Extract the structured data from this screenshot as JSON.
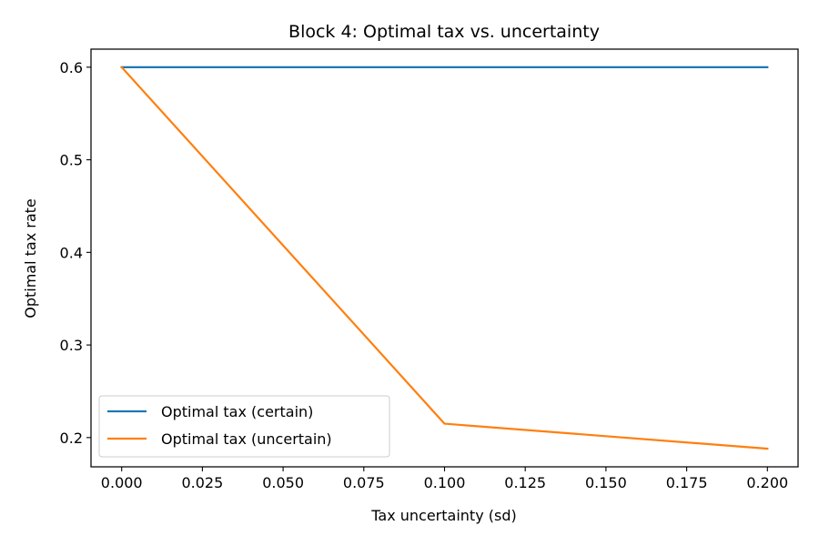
{
  "chart_data": {
    "type": "line",
    "title": "Block 4: Optimal tax vs. uncertainty",
    "xlabel": "Tax uncertainty (sd)",
    "ylabel": "Optimal tax rate",
    "xlim": [
      -0.0095,
      0.2095
    ],
    "ylim": [
      0.1684,
      0.6195
    ],
    "x_ticks": [
      0.0,
      0.025,
      0.05,
      0.075,
      0.1,
      0.125,
      0.15,
      0.175,
      0.2
    ],
    "x_tick_labels": [
      "0.000",
      "0.025",
      "0.050",
      "0.075",
      "0.100",
      "0.125",
      "0.150",
      "0.175",
      "0.200"
    ],
    "y_ticks": [
      0.2,
      0.3,
      0.4,
      0.5,
      0.6
    ],
    "y_tick_labels": [
      "0.2",
      "0.3",
      "0.4",
      "0.5",
      "0.6"
    ],
    "grid": false,
    "legend_position": "lower-left",
    "series": [
      {
        "name": "Optimal tax (certain)",
        "color": "#1f77b4",
        "x": [
          0.0,
          0.1,
          0.2
        ],
        "y": [
          0.6,
          0.6,
          0.6
        ]
      },
      {
        "name": "Optimal tax (uncertain)",
        "color": "#ff7f0e",
        "x": [
          0.0,
          0.1,
          0.2
        ],
        "y": [
          0.6,
          0.215,
          0.188
        ]
      }
    ]
  }
}
